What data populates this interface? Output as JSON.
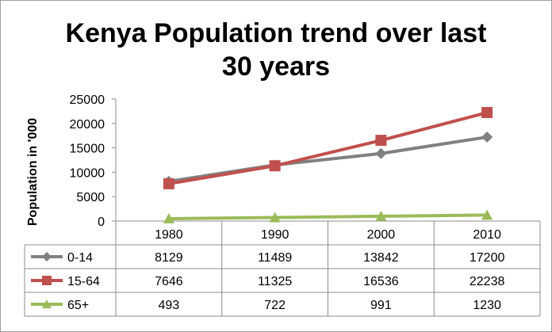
{
  "chart_data": {
    "type": "line",
    "title": [
      "Kenya Population trend over last",
      "30 years"
    ],
    "ylabel": "Population in '000",
    "xlabel": "",
    "categories": [
      "1980",
      "1990",
      "2000",
      "2010"
    ],
    "ylim": [
      0,
      25000
    ],
    "yticks": [
      "0",
      "5000",
      "10000",
      "15000",
      "20000",
      "25000"
    ],
    "grid": false,
    "legend": "data-table",
    "series": [
      {
        "name": "0-14",
        "values": [
          8129,
          11489,
          13842,
          17200
        ],
        "labels": [
          "8129",
          "11489",
          "13842",
          "17200"
        ],
        "color": "#808080",
        "marker": "diamond"
      },
      {
        "name": "15-64",
        "values": [
          7646,
          11325,
          16536,
          22238
        ],
        "labels": [
          "7646",
          "11325",
          "16536",
          "22238"
        ],
        "color": "#c0504d",
        "marker": "square"
      },
      {
        "name": "65+",
        "values": [
          493,
          722,
          991,
          1230
        ],
        "labels": [
          "493",
          "722",
          "991",
          "1230"
        ],
        "color": "#9bbb59",
        "marker": "triangle"
      }
    ]
  }
}
